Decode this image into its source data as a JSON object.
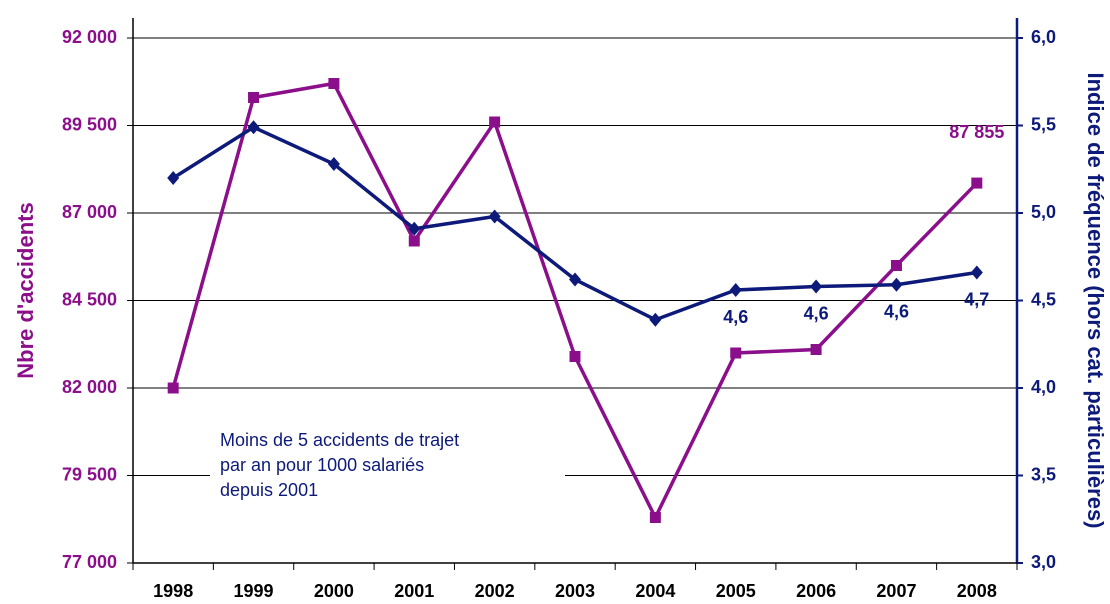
{
  "chart_data": {
    "type": "line",
    "categories": [
      "1998",
      "1999",
      "2000",
      "2001",
      "2002",
      "2003",
      "2004",
      "2005",
      "2006",
      "2007",
      "2008"
    ],
    "y_label": "Nbre d'accidents",
    "y2_label": "Indice de fréquence (hors cat. particulières)",
    "annotation": [
      "Moins de 5 accidents de trajet",
      "par an pour 1000 salariés",
      "depuis 2001"
    ],
    "ylim": [
      77000,
      92000
    ],
    "yticks": [
      {
        "value": 77000,
        "label": "77 000"
      },
      {
        "value": 79500,
        "label": "79 500"
      },
      {
        "value": 82000,
        "label": "82 000"
      },
      {
        "value": 84500,
        "label": "84 500"
      },
      {
        "value": 87000,
        "label": "87 000"
      },
      {
        "value": 89500,
        "label": "89 500"
      },
      {
        "value": 92000,
        "label": "92 000"
      }
    ],
    "y2lim": [
      3.0,
      6.0
    ],
    "y2ticks": [
      {
        "value": 3.0,
        "label": "3,0"
      },
      {
        "value": 3.5,
        "label": "3,5"
      },
      {
        "value": 4.0,
        "label": "4,0"
      },
      {
        "value": 4.5,
        "label": "4,5"
      },
      {
        "value": 5.0,
        "label": "5,0"
      },
      {
        "value": 5.5,
        "label": "5,5"
      },
      {
        "value": 6.0,
        "label": "6,0"
      }
    ],
    "grid": true,
    "series": [
      {
        "name": "Nbre d'accidents",
        "color": "#8b0f8b",
        "marker": "square",
        "values": [
          82000,
          90300,
          90700,
          86200,
          89600,
          82900,
          78300,
          83000,
          83100,
          85500,
          87855
        ],
        "value_labels": [
          null,
          null,
          null,
          null,
          null,
          null,
          null,
          null,
          null,
          null,
          "87 855"
        ]
      },
      {
        "name": "Indice de fréquence",
        "color": "#0d1a7a",
        "marker": "diamond",
        "axis": "y2",
        "values": [
          5.2,
          5.49,
          5.28,
          4.91,
          4.98,
          4.62,
          4.39,
          4.56,
          4.58,
          4.59,
          4.66
        ],
        "value_labels": [
          null,
          null,
          null,
          null,
          null,
          null,
          null,
          "4,6",
          "4,6",
          "4,6",
          "4,7"
        ]
      }
    ]
  }
}
